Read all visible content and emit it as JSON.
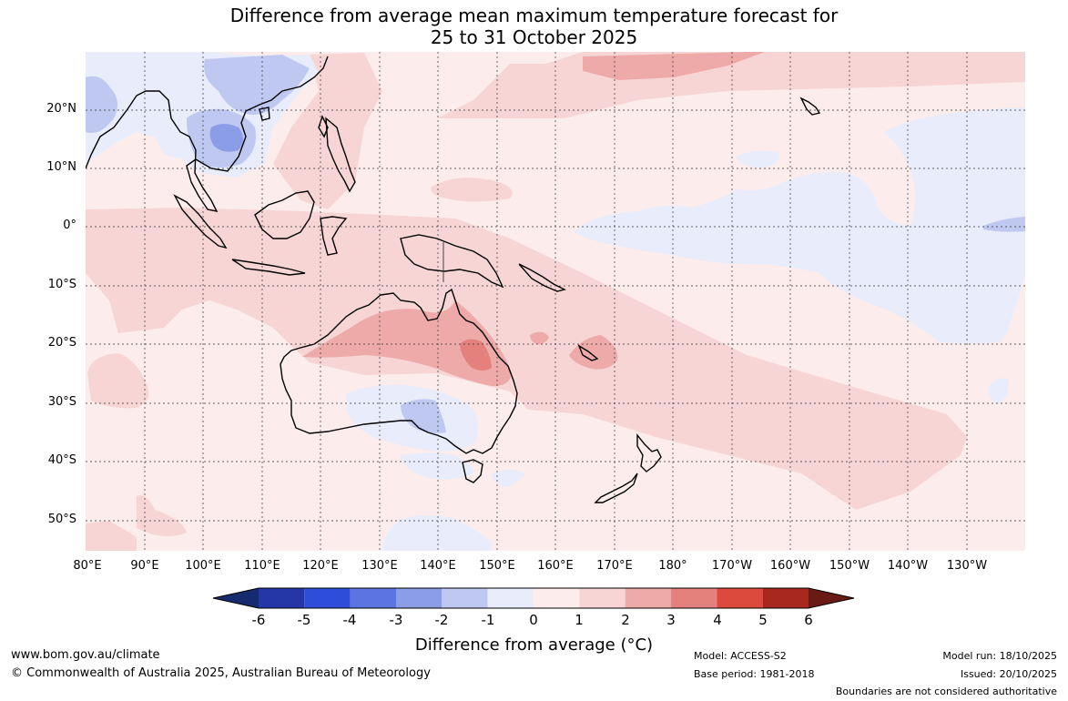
{
  "title": {
    "line1": "Difference from average mean maximum temperature forecast for",
    "line2": "25 to 31 October 2025"
  },
  "map": {
    "lon_labels": [
      "80°E",
      "90°E",
      "100°E",
      "110°E",
      "120°E",
      "130°E",
      "140°E",
      "150°E",
      "160°E",
      "170°E",
      "180°",
      "170°W",
      "160°W",
      "150°W",
      "140°W",
      "130°W"
    ],
    "lat_labels": [
      "20°N",
      "10°N",
      "0°",
      "10°S",
      "20°S",
      "30°S",
      "40°S",
      "50°S"
    ]
  },
  "colorbar": {
    "title": "Difference from average (°C)",
    "ticks": [
      "-6",
      "-5",
      "-4",
      "-3",
      "-2",
      "-1",
      "0",
      "1",
      "2",
      "3",
      "4",
      "5",
      "6"
    ],
    "colors": {
      "below_min": "#162a6e",
      "bins": [
        "#2536a6",
        "#2f4ddb",
        "#5b74e0",
        "#8a9de6",
        "#bfc8f1",
        "#e8ecfb",
        "#fcecec",
        "#f6d5d4",
        "#eeaaa8",
        "#e4817c",
        "#dc4a3d",
        "#a8281f"
      ],
      "above_max": "#6a1a14"
    }
  },
  "footer": {
    "website": "www.bom.gov.au/climate",
    "copyright": "© Commonwealth of Australia 2025, Australian Bureau of Meteorology",
    "model": "Model: ACCESS-S2",
    "base_period": "Base period: 1981-2018",
    "model_run": "Model run: 18/10/2025",
    "issued": "Issued: 20/10/2025",
    "disclaimer": "Boundaries are not considered authoritative"
  }
}
